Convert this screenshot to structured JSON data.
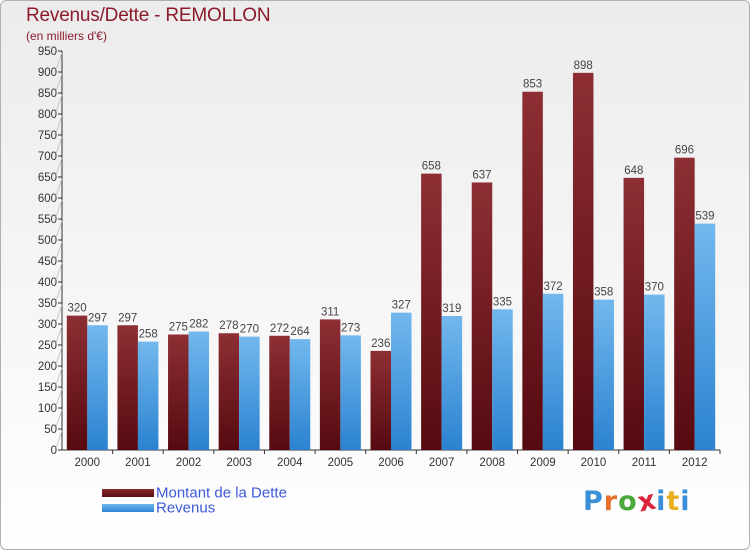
{
  "title": "Revenus/Dette - REMOLLON",
  "subtitle": "(en milliers d'€)",
  "brand": {
    "text": "Proxiti",
    "letter_colors": [
      "#3a8fd8",
      "#e8702a",
      "#4aa83c",
      "#d9253a",
      "#3a8fd8",
      "#e8b020",
      "#3a8fd8"
    ]
  },
  "colors": {
    "title": "#8b1a2b",
    "debt": "#7a1a20",
    "revenue": "#4aa3e8",
    "legend_text": "#3d5ad8"
  },
  "chart_data": {
    "type": "bar",
    "title": "Revenus/Dette - REMOLLON",
    "subtitle": "(en milliers d'€)",
    "categories": [
      "2000",
      "2001",
      "2002",
      "2003",
      "2004",
      "2005",
      "2006",
      "2007",
      "2008",
      "2009",
      "2010",
      "2011",
      "2012"
    ],
    "series": [
      {
        "name": "Montant de la Dette",
        "values": [
          320,
          297,
          275,
          278,
          272,
          311,
          236,
          658,
          637,
          853,
          898,
          648,
          696
        ]
      },
      {
        "name": "Revenus",
        "values": [
          297,
          258,
          282,
          270,
          264,
          273,
          327,
          319,
          335,
          372,
          358,
          370,
          539
        ]
      }
    ],
    "ylim": [
      0,
      950
    ],
    "yticks": [
      0,
      50,
      100,
      150,
      200,
      250,
      300,
      350,
      400,
      450,
      500,
      550,
      600,
      650,
      700,
      750,
      800,
      850,
      900,
      950
    ],
    "grid": false,
    "legend_position": "bottom-left"
  }
}
